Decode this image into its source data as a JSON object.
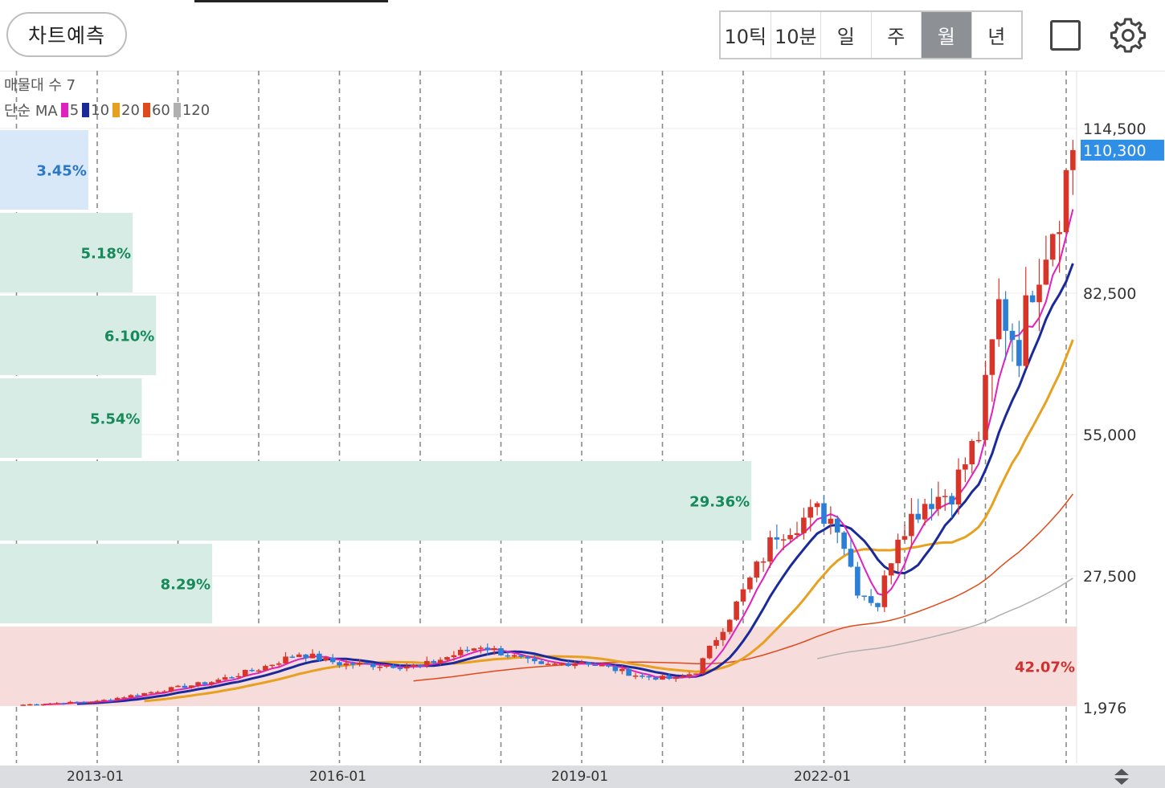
{
  "header": {
    "predict_label": "차트예측",
    "periods": [
      "10틱",
      "10분",
      "일",
      "주",
      "월",
      "년"
    ],
    "active_period": "월",
    "icons": [
      "square-icon",
      "gear-icon"
    ]
  },
  "legend": {
    "volume_profile_label": "매물대 수 7",
    "ma_prefix": "단순 MA",
    "ma": [
      {
        "label": "5",
        "color": "#e020c0"
      },
      {
        "label": "10",
        "color": "#1a2a9a"
      },
      {
        "label": "20",
        "color": "#e8a020"
      },
      {
        "label": "60",
        "color": "#e04a1a"
      },
      {
        "label": "120",
        "color": "#b0b0b0"
      }
    ]
  },
  "chart_data": {
    "type": "candlestick",
    "timeframe": "monthly",
    "y_ticks": [
      {
        "value": 114500,
        "label": "114,500"
      },
      {
        "value": 82500,
        "label": "82,500"
      },
      {
        "value": 55000,
        "label": "55,000"
      },
      {
        "value": 27500,
        "label": "27,500"
      },
      {
        "value": 1976,
        "label": "1,976"
      }
    ],
    "current_price": {
      "value": 110300,
      "label": "110,300"
    },
    "x_ticks": [
      "2013-01",
      "2016-01",
      "2019-01",
      "2022-01"
    ],
    "volume_profile": [
      {
        "pct": 3.45,
        "label": "3.45%"
      },
      {
        "pct": 5.18,
        "label": "5.18%"
      },
      {
        "pct": 6.1,
        "label": "6.10%"
      },
      {
        "pct": 5.54,
        "label": "5.54%"
      },
      {
        "pct": 29.36,
        "label": "29.36%"
      },
      {
        "pct": 8.29,
        "label": "8.29%"
      },
      {
        "pct": 42.07,
        "label": "42.07%"
      }
    ],
    "close_anchors": [
      [
        "2012-01",
        2500
      ],
      [
        "2013-01",
        3200
      ],
      [
        "2014-06",
        7000
      ],
      [
        "2015-01",
        9500
      ],
      [
        "2015-07",
        12500
      ],
      [
        "2016-01",
        10500
      ],
      [
        "2017-01",
        10000
      ],
      [
        "2017-10",
        14000
      ],
      [
        "2018-07",
        10000
      ],
      [
        "2019-01",
        11000
      ],
      [
        "2019-10",
        8000
      ],
      [
        "2020-03",
        7500
      ],
      [
        "2020-06",
        9000
      ],
      [
        "2020-12",
        22000
      ],
      [
        "2021-06",
        36000
      ],
      [
        "2021-12",
        40000
      ],
      [
        "2022-03",
        38000
      ],
      [
        "2022-06",
        25000
      ],
      [
        "2022-09",
        22000
      ],
      [
        "2022-12",
        36000
      ],
      [
        "2023-04",
        42000
      ],
      [
        "2023-08",
        44000
      ],
      [
        "2023-12",
        55000
      ],
      [
        "2024-03",
        80000
      ],
      [
        "2024-06",
        72000
      ],
      [
        "2024-08",
        85000
      ],
      [
        "2024-12",
        100000
      ],
      [
        "2025-02",
        110300
      ]
    ]
  }
}
